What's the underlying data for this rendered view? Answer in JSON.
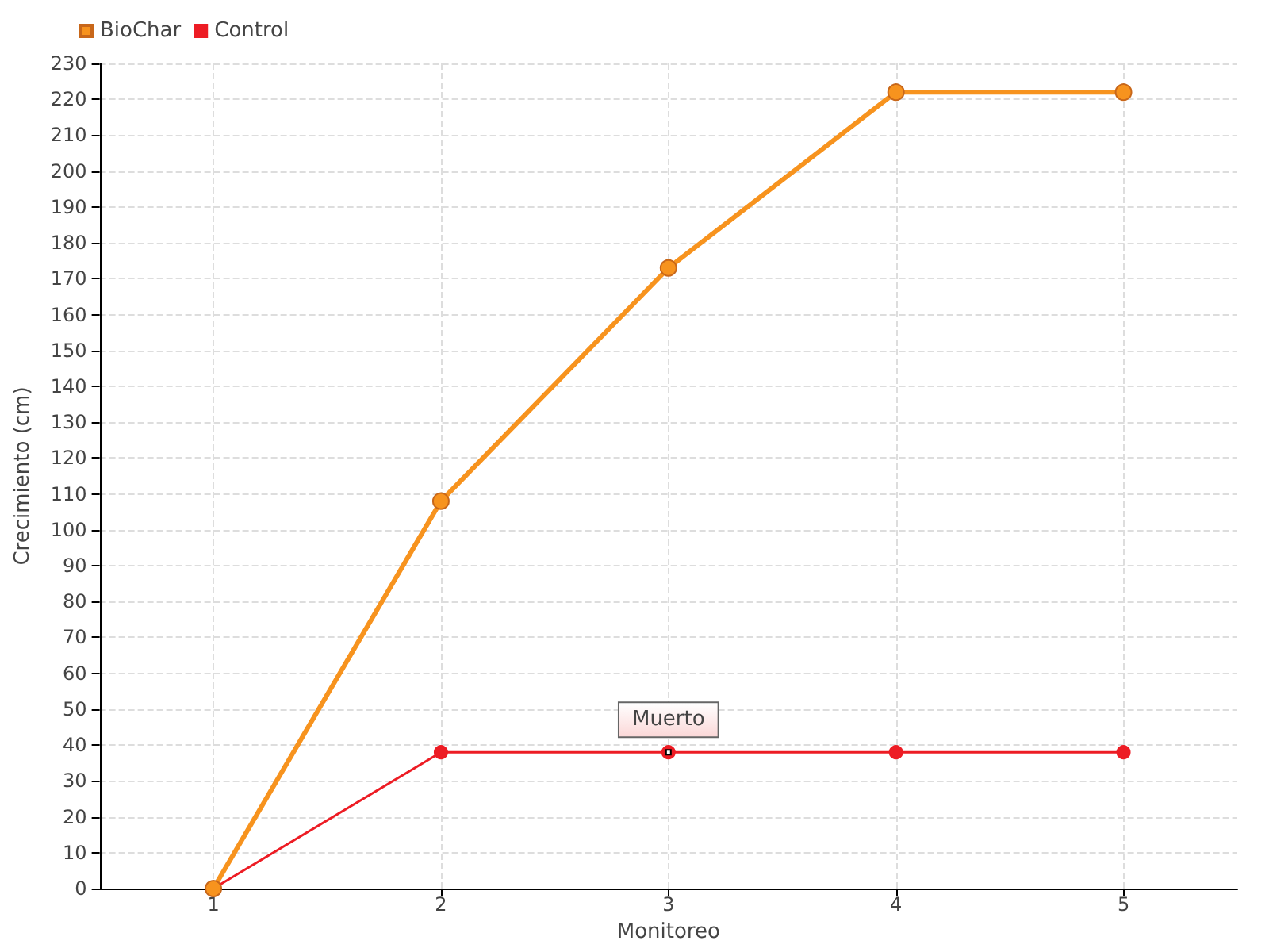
{
  "chart_data": {
    "type": "line",
    "xlabel": "Monitoreo",
    "ylabel": "Crecimiento (cm)",
    "x": [
      1,
      2,
      3,
      4,
      5
    ],
    "xlim": [
      0.5,
      5.5
    ],
    "xticks": [
      1,
      2,
      3,
      4,
      5
    ],
    "ylim": [
      0,
      230
    ],
    "yticks": [
      0,
      10,
      20,
      30,
      40,
      50,
      60,
      70,
      80,
      90,
      100,
      110,
      120,
      130,
      140,
      150,
      160,
      170,
      180,
      190,
      200,
      210,
      220,
      230
    ],
    "series": [
      {
        "name": "BioChar",
        "color": "#f7931e",
        "values": [
          0,
          108,
          173,
          222,
          222
        ]
      },
      {
        "name": "Control",
        "color": "#ed1c24",
        "values": [
          0,
          38,
          38,
          38,
          38
        ]
      }
    ],
    "annotations": [
      {
        "text": "Muerto",
        "x": 3,
        "y": 38
      }
    ],
    "grid": true,
    "legend": "top left",
    "marker": "circle",
    "line_style": "solid"
  }
}
